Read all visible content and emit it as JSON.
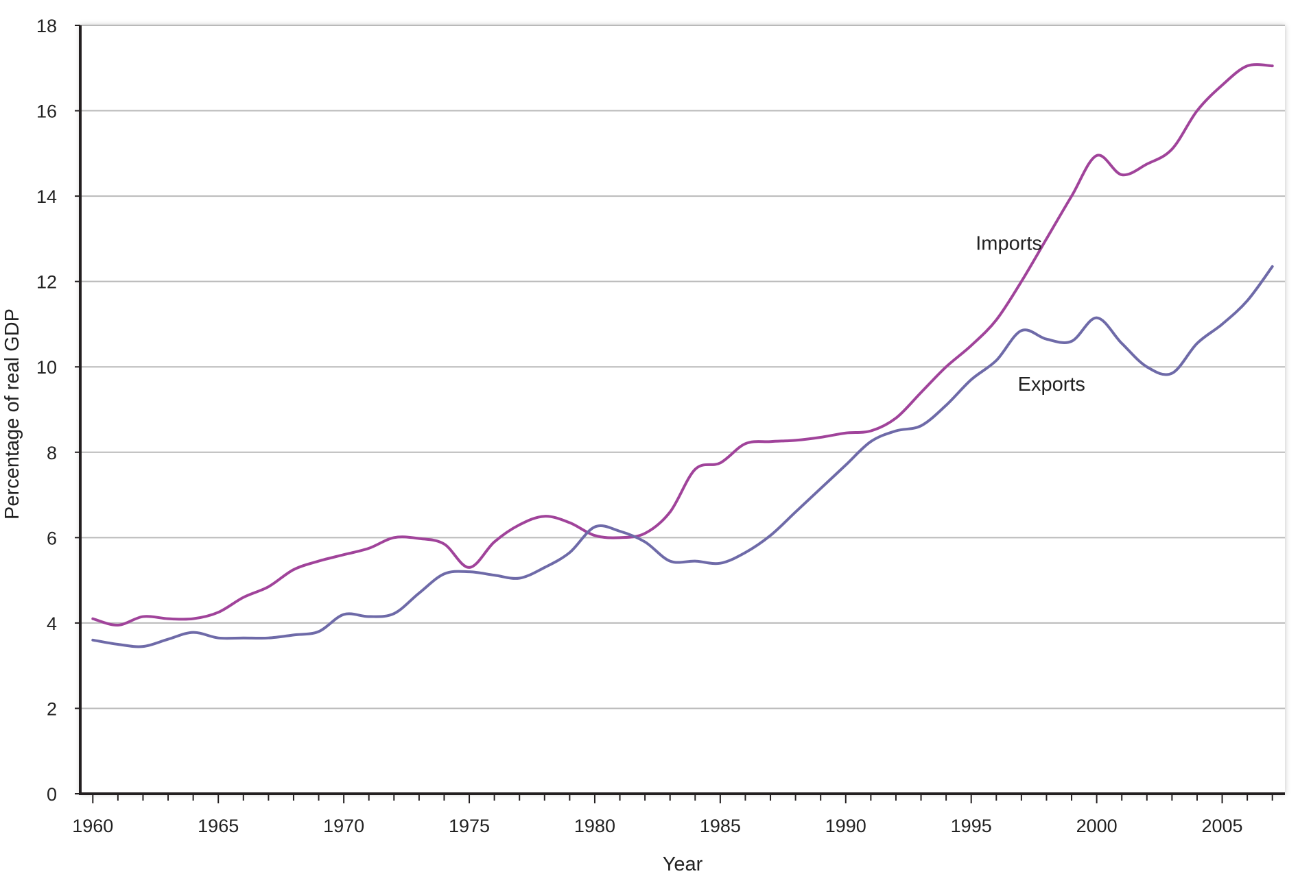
{
  "chart_data": {
    "type": "line",
    "xlabel": "Year",
    "ylabel": "Percentage of real GDP",
    "xlim": [
      1959.5,
      2007.5
    ],
    "ylim": [
      0,
      18
    ],
    "x_ticks": [
      1960,
      1965,
      1970,
      1975,
      1980,
      1985,
      1990,
      1995,
      2000,
      2005
    ],
    "y_ticks": [
      0,
      2,
      4,
      6,
      8,
      10,
      12,
      14,
      16,
      18
    ],
    "grid": true,
    "legend": "none (series labeled directly on chart)",
    "x": [
      1960,
      1961,
      1962,
      1963,
      1964,
      1965,
      1966,
      1967,
      1968,
      1969,
      1970,
      1971,
      1972,
      1973,
      1974,
      1975,
      1976,
      1977,
      1978,
      1979,
      1980,
      1981,
      1982,
      1983,
      1984,
      1985,
      1986,
      1987,
      1988,
      1989,
      1990,
      1991,
      1992,
      1993,
      1994,
      1995,
      1996,
      1997,
      1998,
      1999,
      2000,
      2001,
      2002,
      2003,
      2004,
      2005,
      2006,
      2007
    ],
    "series": [
      {
        "name": "Imports",
        "color": "#a0439a",
        "values": [
          4.1,
          3.95,
          4.15,
          4.1,
          4.1,
          4.25,
          4.6,
          4.85,
          5.25,
          5.45,
          5.6,
          5.75,
          6.0,
          5.98,
          5.85,
          5.3,
          5.9,
          6.3,
          6.5,
          6.35,
          6.05,
          6.0,
          6.1,
          6.6,
          7.6,
          7.75,
          8.2,
          8.25,
          8.28,
          8.35,
          8.45,
          8.5,
          8.8,
          9.4,
          10.0,
          10.5,
          11.1,
          12.0,
          13.0,
          14.0,
          14.95,
          14.5,
          14.75,
          15.1,
          16.0,
          16.6,
          17.05,
          17.05
        ]
      },
      {
        "name": "Exports",
        "color": "#6e6aa8",
        "values": [
          3.6,
          3.5,
          3.45,
          3.62,
          3.78,
          3.65,
          3.65,
          3.65,
          3.72,
          3.8,
          4.2,
          4.15,
          4.22,
          4.7,
          5.15,
          5.2,
          5.12,
          5.05,
          5.3,
          5.65,
          6.25,
          6.15,
          5.9,
          5.45,
          5.45,
          5.4,
          5.65,
          6.05,
          6.6,
          7.15,
          7.7,
          8.25,
          8.5,
          8.62,
          9.1,
          9.7,
          10.15,
          10.85,
          10.65,
          10.6,
          11.15,
          10.55,
          10.0,
          9.85,
          10.55,
          11.0,
          11.55,
          12.35
        ]
      }
    ],
    "annotations": [
      {
        "text": "Imports",
        "x": 1996.5,
        "y": 12.9
      },
      {
        "text": "Exports",
        "x": 1998.2,
        "y": 9.6
      }
    ]
  }
}
